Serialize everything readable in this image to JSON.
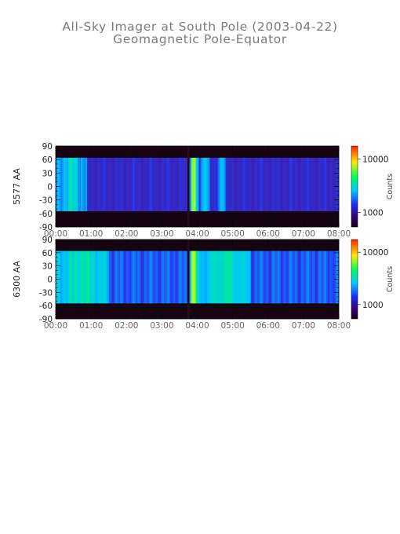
{
  "header": {
    "title": "All-Sky Imager at South Pole (2003-04-22)",
    "subtitle": "Geomagnetic Pole-Equator"
  },
  "colorbar": {
    "label": "Counts",
    "ticks": [
      "10000",
      "1000"
    ]
  },
  "chart_data": [
    {
      "type": "heatmap",
      "name": "5577 AA",
      "ylabel": "5577 AA",
      "xlabel": "",
      "xlim": [
        "00:00",
        "08:00"
      ],
      "ylim": [
        -90,
        90
      ],
      "x_ticks": [
        "00:00",
        "01:00",
        "02:00",
        "03:00",
        "04:00",
        "05:00",
        "06:00",
        "07:00",
        "08:00"
      ],
      "y_ticks": [
        90,
        60,
        30,
        0,
        -30,
        -60,
        -90
      ],
      "valid_y_range": [
        -55,
        64
      ],
      "colorbar_ticks": [
        10000,
        1000
      ],
      "colorbar_label": "Counts",
      "bright_intervals_hours": [
        [
          0.0,
          0.9
        ],
        [
          3.8,
          4.05
        ],
        [
          4.1,
          4.35
        ],
        [
          4.6,
          4.8
        ]
      ],
      "dark_gap_hours": [
        3.72,
        3.78
      ]
    },
    {
      "type": "heatmap",
      "name": "6300 AA",
      "ylabel": "6300 AA",
      "xlabel": "",
      "xlim": [
        "00:00",
        "08:00"
      ],
      "ylim": [
        -90,
        90
      ],
      "x_ticks": [
        "00:00",
        "01:00",
        "02:00",
        "03:00",
        "04:00",
        "05:00",
        "06:00",
        "07:00",
        "08:00"
      ],
      "y_ticks": [
        90,
        60,
        30,
        0,
        -30,
        -60,
        -90
      ],
      "valid_y_range": [
        -55,
        64
      ],
      "colorbar_ticks": [
        10000,
        1000
      ],
      "colorbar_label": "Counts",
      "bright_intervals_hours": [
        [
          0.0,
          1.5
        ],
        [
          3.8,
          4.1
        ],
        [
          4.1,
          5.5
        ]
      ],
      "dark_gap_hours": [
        3.72,
        3.78
      ]
    }
  ]
}
